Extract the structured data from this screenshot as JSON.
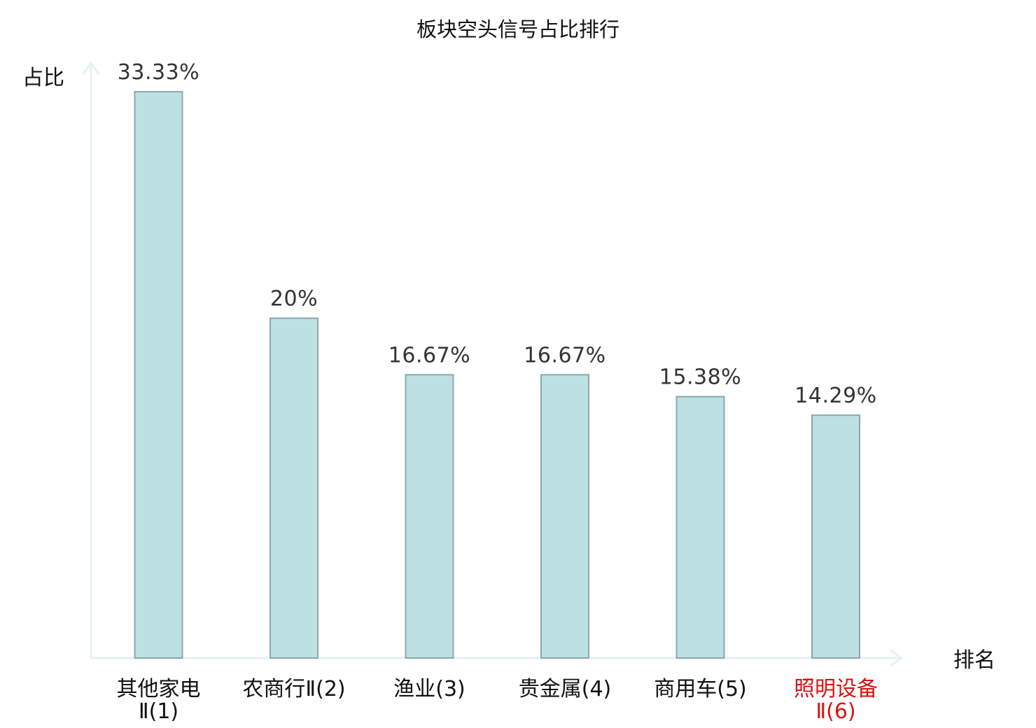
{
  "chart_data": {
    "type": "bar",
    "title": "板块空头信号占比排行",
    "ylabel": "占比",
    "xlabel": "排名",
    "ylim": [
      0,
      35
    ],
    "grid": false,
    "legend": "none",
    "categories": [
      {
        "line1": "其他家电",
        "line2": "Ⅱ(1)",
        "highlight": false
      },
      {
        "line1": "农商行Ⅱ(2)",
        "line2": "",
        "highlight": false
      },
      {
        "line1": "渔业(3)",
        "line2": "",
        "highlight": false
      },
      {
        "line1": "贵金属(4)",
        "line2": "",
        "highlight": false
      },
      {
        "line1": "商用车(5)",
        "line2": "",
        "highlight": false
      },
      {
        "line1": "照明设备",
        "line2": "Ⅱ(6)",
        "highlight": true
      }
    ],
    "values": [
      33.33,
      20,
      16.67,
      16.67,
      15.38,
      14.29
    ],
    "value_labels": [
      "33.33%",
      "20%",
      "16.67%",
      "16.67%",
      "15.38%",
      "14.29%"
    ]
  },
  "colors": {
    "bar_fill": "#bde0e3",
    "bar_stroke": "#8aa8ad",
    "axis": "#e3f2f0",
    "label_text": "#111111",
    "value_text": "#333333",
    "highlight_text": "#dd1111"
  }
}
